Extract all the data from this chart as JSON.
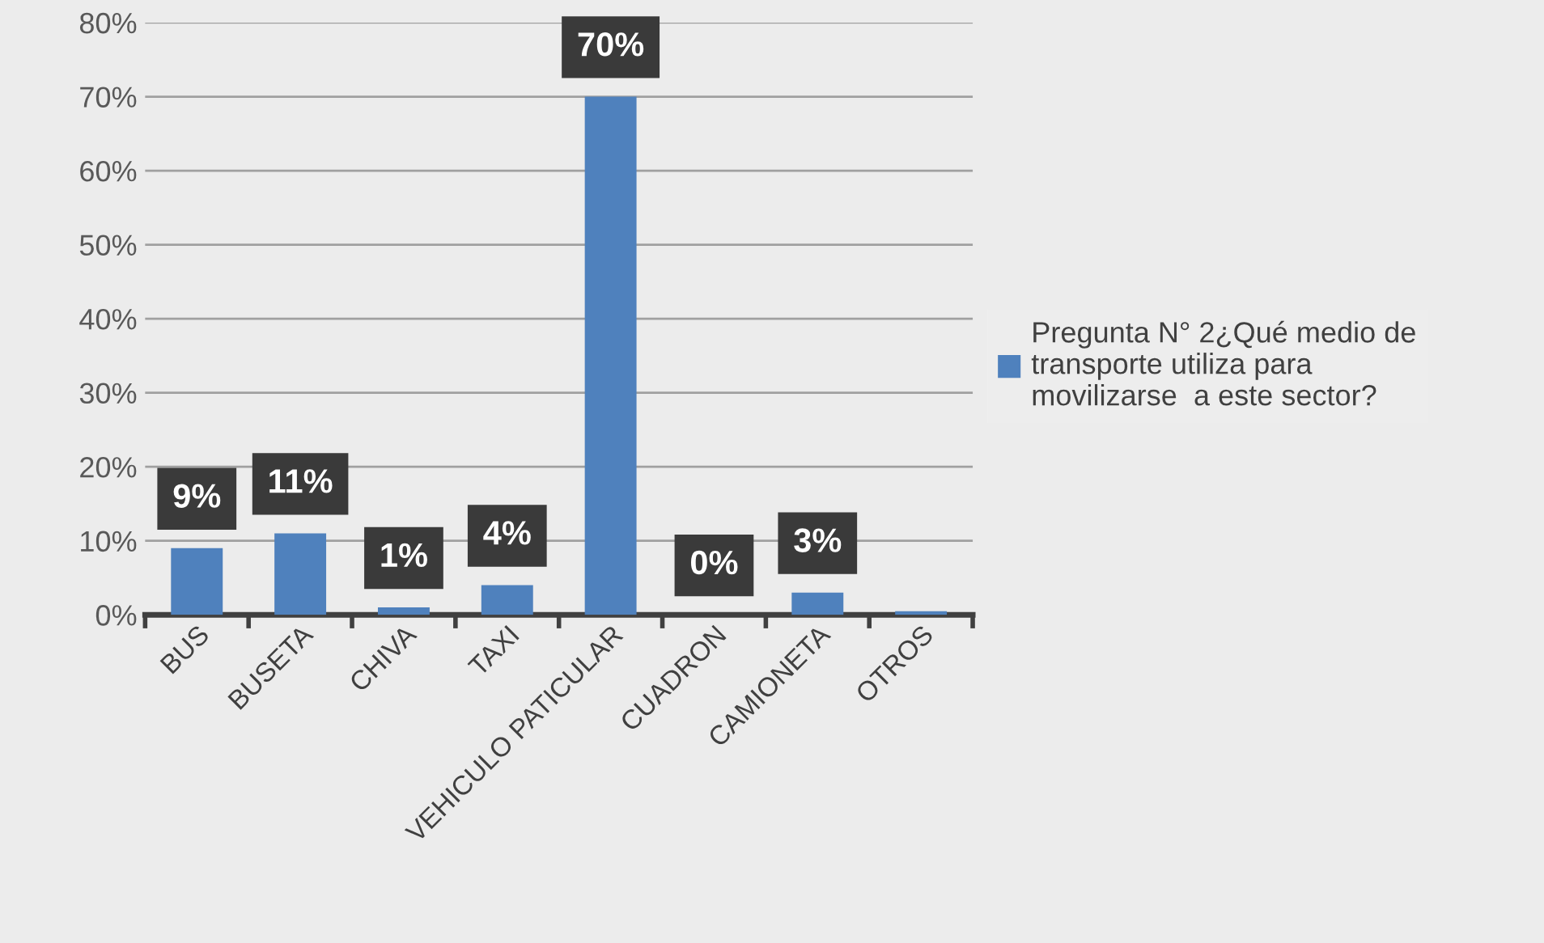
{
  "chart_data": {
    "type": "bar",
    "categories": [
      "BUS",
      "BUSETA",
      "CHIVA",
      "TAXI",
      "VEHICULO PATICULAR",
      "CUADRON",
      "CAMIONETA",
      "OTROS"
    ],
    "series": [
      {
        "name": "Pregunta N° 2¿Qué medio de transporte utiliza para movilizarse  a este sector?",
        "color": "#4f81bd",
        "values": [
          9,
          11,
          1,
          4,
          70,
          0,
          3,
          0.5
        ],
        "value_labels": [
          "9%",
          "11%",
          "1%",
          "4%",
          "70%",
          "0%",
          "3%",
          null
        ]
      }
    ],
    "ylim": [
      0,
      80
    ],
    "yticks": [
      {
        "value": 0,
        "label": "0%"
      },
      {
        "value": 10,
        "label": "10%"
      },
      {
        "value": 20,
        "label": "20%"
      },
      {
        "value": 30,
        "label": "30%"
      },
      {
        "value": 40,
        "label": "40%"
      },
      {
        "value": 50,
        "label": "50%"
      },
      {
        "value": 60,
        "label": "60%"
      },
      {
        "value": 70,
        "label": "70%"
      },
      {
        "value": 80,
        "label": "80%"
      }
    ],
    "grid": "y",
    "legend": "right"
  }
}
